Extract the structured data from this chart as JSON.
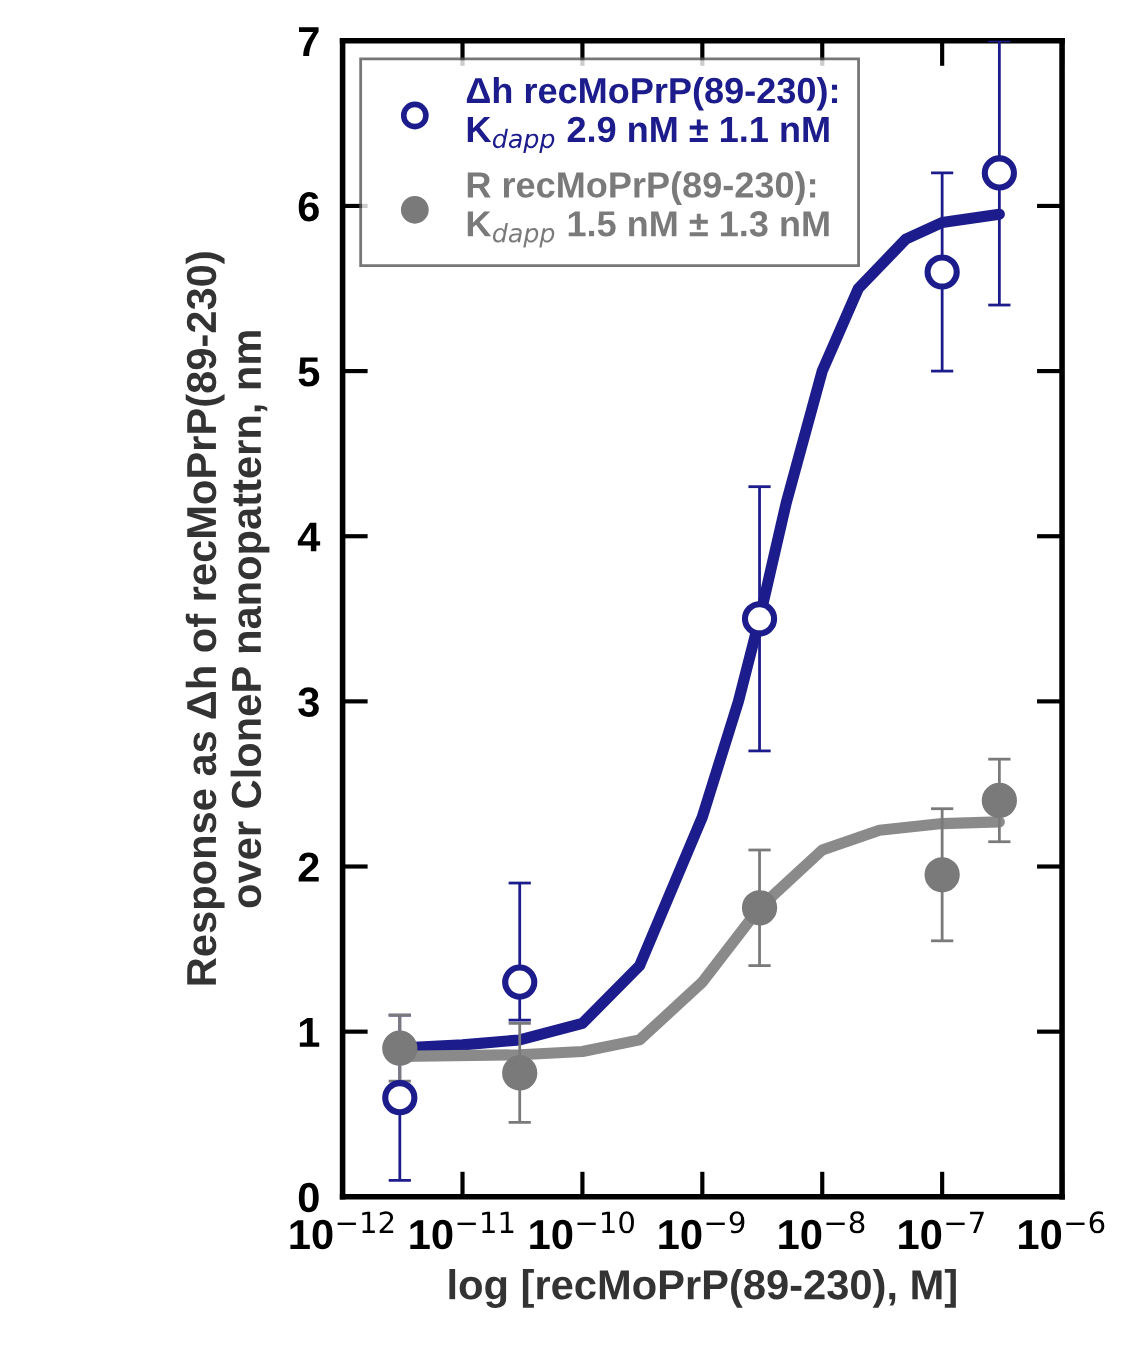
{
  "chart_data": {
    "type": "scatter",
    "xlabel": "log [recMoPrP(89-230), M]",
    "ylabel": "Response as Δh of recMoPrP(89-230)\nover CloneP nanopattern, nm",
    "log": "x",
    "xlim": [
      1e-12,
      1e-06
    ],
    "ylim": [
      0,
      7
    ],
    "xticks": [
      {
        "value": 1e-12,
        "label": "10$^{−12}$"
      },
      {
        "value": 1e-11,
        "label": "10$^{−11}$"
      },
      {
        "value": 1e-10,
        "label": "10$^{−10}$"
      },
      {
        "value": 1e-09,
        "label": "10$^{−9}$"
      },
      {
        "value": 1e-08,
        "label": "10$^{−8}$"
      },
      {
        "value": 1e-07,
        "label": "10$^{−7}$"
      },
      {
        "value": 1e-06,
        "label": "10$^{−6}$"
      }
    ],
    "yticks": [
      0,
      1,
      2,
      3,
      4,
      5,
      6,
      7
    ],
    "grid": false,
    "legend": "top left",
    "series": [
      {
        "type": "line",
        "color": "#1c1c8c",
        "x": [
          3e-12,
          1e-11,
          3e-11,
          1e-10,
          3e-10,
          1e-09,
          2e-09,
          3e-09,
          5e-09,
          1e-08,
          2e-08,
          5e-08,
          1e-07,
          3e-07
        ],
        "values": [
          0.9,
          0.92,
          0.95,
          1.05,
          1.4,
          2.3,
          3.0,
          3.5,
          4.2,
          5.0,
          5.5,
          5.8,
          5.9,
          5.95
        ]
      },
      {
        "type": "line",
        "color": "#8a8a8a",
        "x": [
          3e-12,
          3e-11,
          1e-10,
          3e-10,
          1e-09,
          3e-09,
          1e-08,
          3e-08,
          1e-07,
          3e-07
        ],
        "values": [
          0.85,
          0.86,
          0.88,
          0.95,
          1.3,
          1.75,
          2.1,
          2.22,
          2.26,
          2.27
        ]
      },
      {
        "marker": "circle_open",
        "name": "Δh recMoPrP(89-230):\nK$_{dapp}$ 2.9 nM ± 1.1 nM",
        "color": "#1c1c8c",
        "x": [
          3e-12,
          3e-11,
          3e-09,
          1e-07,
          3e-07
        ],
        "values": [
          0.6,
          1.3,
          3.5,
          5.6,
          6.2
        ],
        "errors": [
          [
            0.1,
            1.1
          ],
          [
            1.07,
            1.9
          ],
          [
            2.7,
            4.3
          ],
          [
            5.0,
            6.2
          ],
          [
            5.4,
            7.0
          ]
        ]
      },
      {
        "marker": "circle",
        "name": "R recMoPrP(89-230):\nK$_{dapp}$ 1.5 nM ± 1.3 nM",
        "color": "#7a7a7a",
        "x": [
          3e-12,
          3e-11,
          3e-09,
          1e-07,
          3e-07
        ],
        "values": [
          0.9,
          0.75,
          1.75,
          1.95,
          2.4
        ],
        "errors": [
          [
            0.7,
            1.1
          ],
          [
            0.45,
            1.05
          ],
          [
            1.4,
            2.1
          ],
          [
            1.55,
            2.35
          ],
          [
            2.15,
            2.65
          ]
        ]
      }
    ]
  }
}
